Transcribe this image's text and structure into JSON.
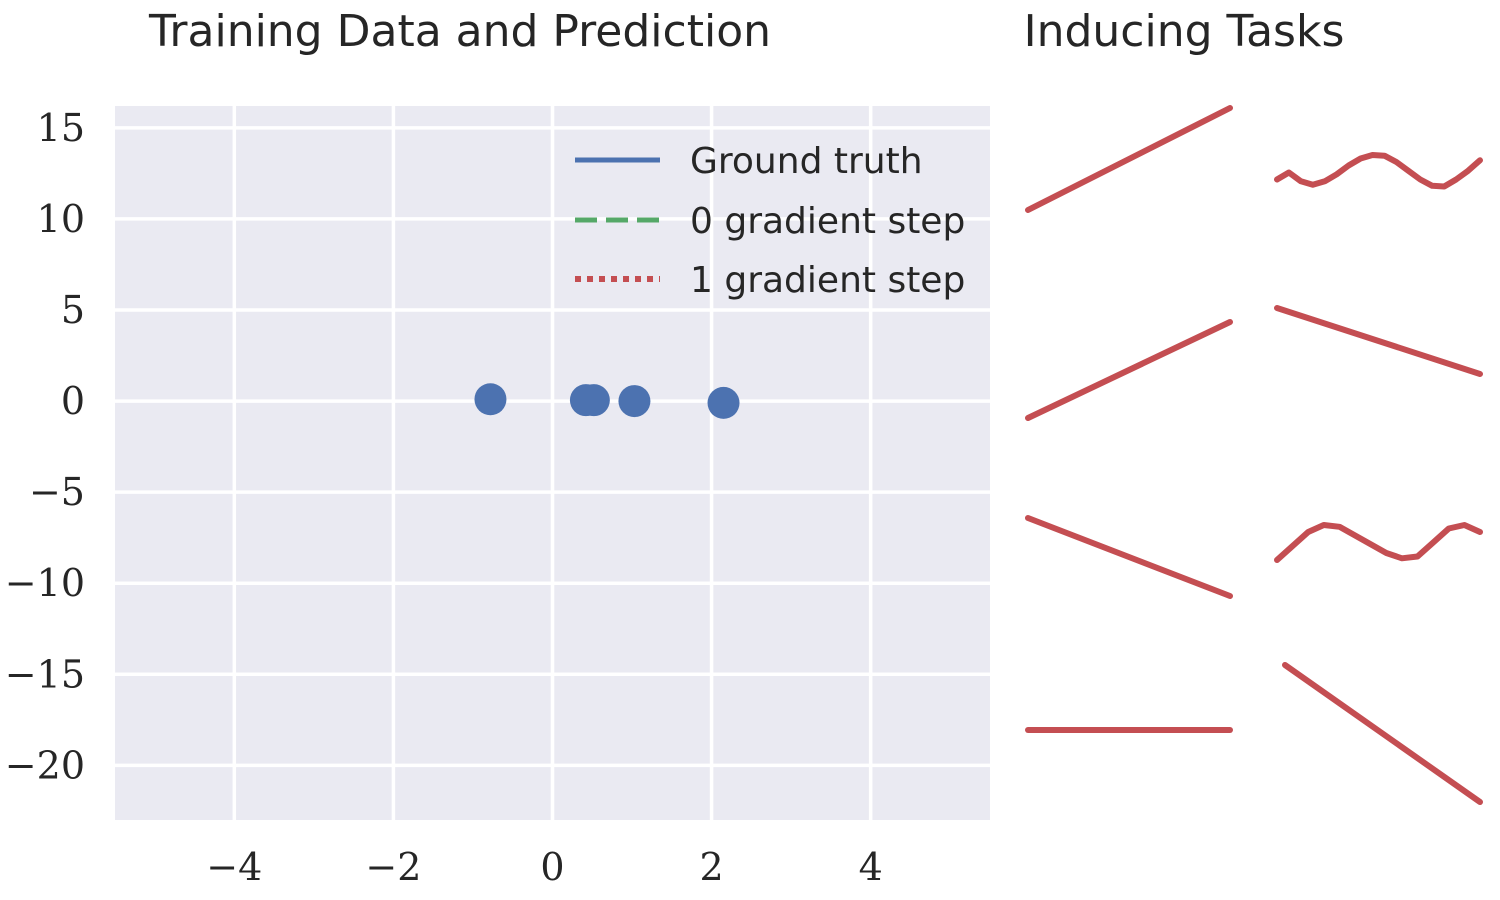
{
  "chart_data": [
    {
      "type": "scatter",
      "title": "Training Data and Prediction",
      "xlabel": "",
      "ylabel": "",
      "xlim": [
        -5.5,
        5.5
      ],
      "ylim": [
        -23,
        16.2
      ],
      "xticks": [
        -4,
        -2,
        0,
        2,
        4
      ],
      "xtick_labels": [
        "−4",
        "−2",
        "0",
        "2",
        "4"
      ],
      "yticks": [
        15,
        10,
        5,
        0,
        -5,
        -10,
        -15,
        -20
      ],
      "ytick_labels": [
        "15",
        "10",
        "5",
        "0",
        "−5",
        "−10",
        "−15",
        "−20"
      ],
      "grid": true,
      "legend_position": "top-right",
      "legend": [
        {
          "label": "Ground truth",
          "style": "solid",
          "color": "#4C72B0"
        },
        {
          "label": "0 gradient step",
          "style": "dashed",
          "color": "#55A868"
        },
        {
          "label": "1 gradient step",
          "style": "dotted",
          "color": "#C44E52"
        }
      ],
      "points": {
        "color": "#4C72B0",
        "x": [
          -0.78,
          0.42,
          0.52,
          1.03,
          2.15
        ],
        "y": [
          0.1,
          0.05,
          0.05,
          0.0,
          -0.1
        ]
      }
    },
    {
      "type": "line",
      "title": "Inducing Tasks",
      "color": "#C44E52",
      "axes": false,
      "subplots": [
        {
          "shape": "linear",
          "y": [
            0.0,
            1.0
          ]
        },
        {
          "shape": "sine",
          "y": [
            0.3,
            0.5,
            0.25,
            0.15,
            0.25,
            0.45,
            0.7,
            0.9,
            1.0,
            0.98,
            0.8,
            0.55,
            0.3,
            0.12,
            0.1,
            0.3,
            0.55,
            0.85
          ]
        },
        {
          "shape": "linear",
          "y": [
            0.0,
            1.0
          ]
        },
        {
          "shape": "linear",
          "y": [
            1.0,
            0.0
          ]
        },
        {
          "shape": "linear",
          "y": [
            1.0,
            0.0
          ]
        },
        {
          "shape": "sine",
          "y": [
            0.0,
            0.4,
            0.8,
            1.0,
            0.95,
            0.7,
            0.45,
            0.2,
            0.05,
            0.1,
            0.5,
            0.9,
            1.0,
            0.8
          ]
        },
        {
          "shape": "flat",
          "y": [
            0.5,
            0.5
          ]
        },
        {
          "shape": "linear",
          "y": [
            1.0,
            0.0
          ]
        }
      ]
    }
  ]
}
